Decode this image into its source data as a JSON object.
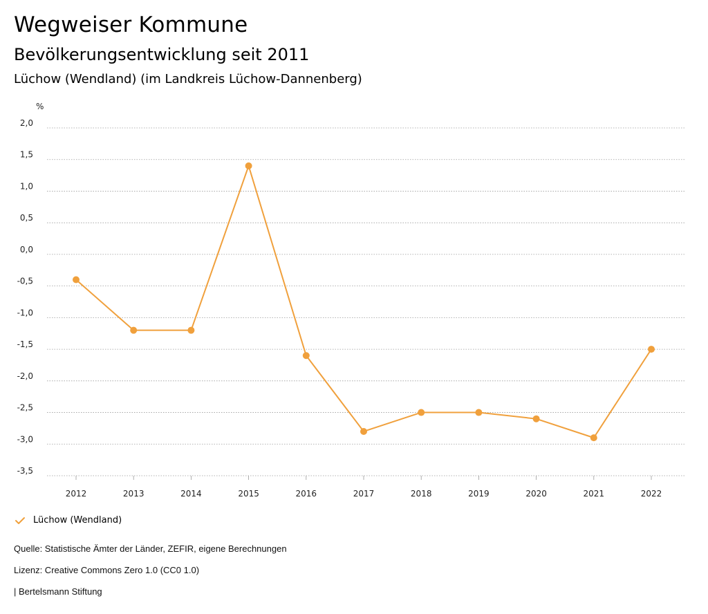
{
  "header": {
    "title": "Wegweiser Kommune",
    "subtitle": "Bevölkerungsentwicklung seit 2011",
    "place": "Lüchow (Wendland) (im Landkreis Lüchow-Dannenberg)"
  },
  "chart_data": {
    "type": "line",
    "title": "Bevölkerungsentwicklung seit 2011",
    "ylabel": "%",
    "xlabel": "",
    "x": [
      "2012",
      "2013",
      "2014",
      "2015",
      "2016",
      "2017",
      "2018",
      "2019",
      "2020",
      "2021",
      "2022"
    ],
    "series": [
      {
        "name": "Lüchow (Wendland)",
        "color": "#f0a03c",
        "values": [
          -0.4,
          -1.2,
          -1.2,
          1.4,
          -1.6,
          -2.8,
          -2.5,
          -2.5,
          -2.6,
          -2.9,
          -1.5
        ]
      }
    ],
    "ylim": [
      -3.5,
      2.0
    ],
    "yticks": [
      2.0,
      1.5,
      1.0,
      0.5,
      0.0,
      -0.5,
      -1.0,
      -1.5,
      -2.0,
      -2.5,
      -3.0,
      -3.5
    ],
    "ytick_labels": [
      "2,0",
      "1,5",
      "1,0",
      "0,5",
      "0,0",
      "-0,5",
      "-1,0",
      "-1,5",
      "-2,0",
      "-2,5",
      "-3,0",
      "-3,5"
    ],
    "grid": true,
    "legend": "bottom-left"
  },
  "legend": {
    "label": "Lüchow (Wendland)",
    "icon": "check-icon"
  },
  "footer": {
    "source": "Quelle: Statistische Ämter der Länder, ZEFIR, eigene Berechnungen",
    "license": "Lizenz: Creative Commons Zero 1.0 (CC0 1.0)",
    "publisher": "| Bertelsmann Stiftung"
  }
}
